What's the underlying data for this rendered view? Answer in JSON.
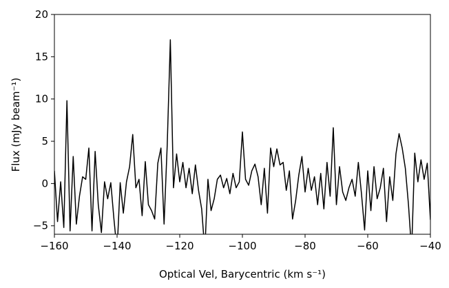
{
  "chart_data": {
    "type": "line",
    "xlabel": "Optical Vel, Barycentric (km s⁻¹)",
    "ylabel": "Flux (mJy beam⁻¹)",
    "x": [
      -160,
      -159,
      -158,
      -157,
      -156,
      -155,
      -154,
      -153,
      -152,
      -151,
      -150,
      -149,
      -148,
      -147,
      -146,
      -145,
      -144,
      -143,
      -142,
      -141,
      -140,
      -139,
      -138,
      -137,
      -136,
      -135,
      -134,
      -133,
      -132,
      -131,
      -130,
      -129,
      -128,
      -127,
      -126,
      -125,
      -124,
      -123,
      -122,
      -121,
      -120,
      -119,
      -118,
      -117,
      -116,
      -115,
      -114,
      -113,
      -112,
      -111,
      -110,
      -109,
      -108,
      -107,
      -106,
      -105,
      -104,
      -103,
      -102,
      -101,
      -100,
      -99,
      -98,
      -97,
      -96,
      -95,
      -94,
      -93,
      -92,
      -91,
      -90,
      -89,
      -88,
      -87,
      -86,
      -85,
      -84,
      -83,
      -82,
      -81,
      -80,
      -79,
      -78,
      -77,
      -76,
      -75,
      -74,
      -73,
      -72,
      -71,
      -70,
      -69,
      -68,
      -67,
      -66,
      -65,
      -64,
      -63,
      -62,
      -61,
      -60,
      -59,
      -58,
      -57,
      -56,
      -55,
      -54,
      -53,
      -52,
      -51,
      -50,
      -49,
      -48,
      -47,
      -46,
      -45,
      -44,
      -43,
      -42,
      -41,
      -40
    ],
    "values": [
      1.5,
      -4.5,
      0.2,
      -5.2,
      9.8,
      -5.6,
      3.2,
      -4.8,
      -1.5,
      0.8,
      0.5,
      4.2,
      -5.6,
      3.8,
      -2.5,
      -5.8,
      0.2,
      -1.8,
      0.1,
      -4.2,
      -8,
      0.1,
      -3.5,
      0.2,
      2.0,
      5.8,
      -0.5,
      0.5,
      -3.8,
      2.6,
      -2.5,
      -3.2,
      -4.2,
      2.4,
      4.2,
      -4.8,
      4.5,
      17,
      -0.5,
      3.5,
      0.2,
      2.5,
      -0.5,
      1.8,
      -1.2,
      2.2,
      -0.8,
      -3,
      -8,
      0.5,
      -3.2,
      -1.8,
      0.5,
      1.0,
      -0.5,
      0.6,
      -1.2,
      1.2,
      -0.5,
      0.2,
      6.1,
      0.5,
      -0.2,
      1.5,
      2.3,
      0.8,
      -2.5,
      1.8,
      -3.5,
      4.2,
      2.0,
      4.1,
      2.2,
      2.5,
      -0.8,
      1.5,
      -4.2,
      -2.0,
      1.0,
      3.2,
      -1.0,
      1.8,
      -0.8,
      0.8,
      -2.5,
      1.2,
      -3.0,
      2.5,
      -1.5,
      6.6,
      -2.5,
      2.0,
      -1.0,
      -2.0,
      -0.5,
      0.5,
      -1.5,
      2.5,
      -1.2,
      -5.5,
      1.5,
      -3.2,
      2.0,
      -1.8,
      -0.5,
      1.8,
      -4.5,
      0.8,
      -2.0,
      3.5,
      5.9,
      4.2,
      1.8,
      -2.5,
      -8,
      3.6,
      0.2,
      2.8,
      0.5,
      2.4,
      -4.3
    ],
    "color": "#000000",
    "xlim": [
      -160,
      -40
    ],
    "ylim": [
      -6,
      20
    ],
    "xticks": [
      {
        "value": -160,
        "label": "−160"
      },
      {
        "value": -140,
        "label": "−140"
      },
      {
        "value": -120,
        "label": "−120"
      },
      {
        "value": -100,
        "label": "−100"
      },
      {
        "value": -80,
        "label": "−80"
      },
      {
        "value": -60,
        "label": "−60"
      },
      {
        "value": -40,
        "label": "−40"
      }
    ],
    "yticks": [
      {
        "value": -5,
        "label": "−5"
      },
      0,
      5,
      10,
      15,
      20
    ],
    "grid": false
  }
}
